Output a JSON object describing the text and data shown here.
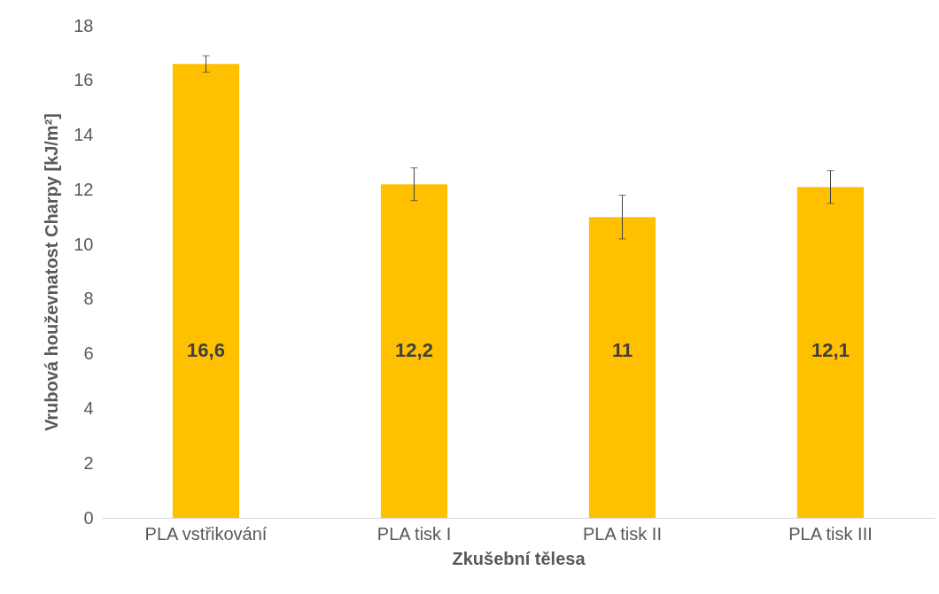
{
  "chart_data": {
    "type": "bar",
    "xlabel": "Zkušební tělesa",
    "ylabel": "Vrubová houževnatost Charpy [kJ/m²]",
    "categories": [
      "PLA vstřikování",
      "PLA tisk I",
      "PLA tisk II",
      "PLA tisk III"
    ],
    "values": [
      16.6,
      12.2,
      11,
      12.1
    ],
    "value_labels": [
      "16,6",
      "12,2",
      "11",
      "12,1"
    ],
    "errors": [
      0.3,
      0.6,
      0.8,
      0.6
    ],
    "color": "#ffc000",
    "ylim": [
      0,
      18
    ],
    "yticks": [
      0,
      2,
      4,
      6,
      8,
      10,
      12,
      14,
      16,
      18
    ],
    "grid": false
  }
}
